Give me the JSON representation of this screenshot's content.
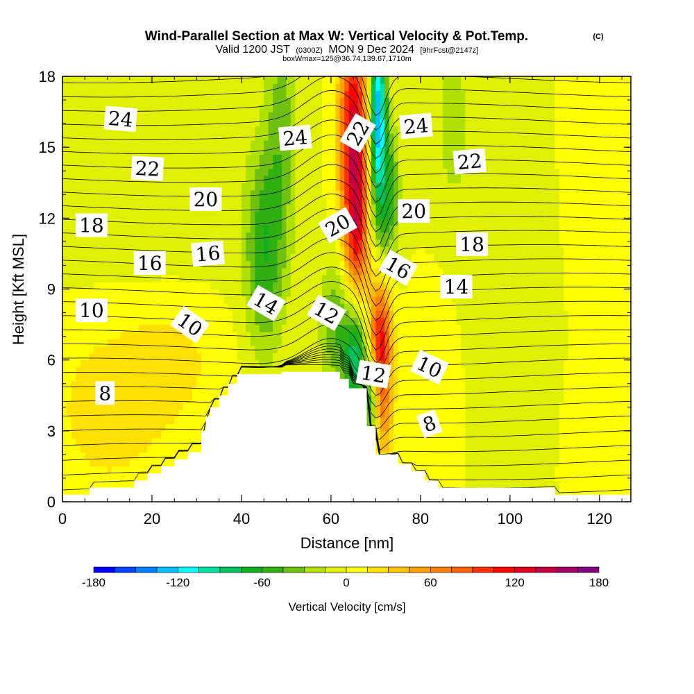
{
  "figure": {
    "title": "Wind-Parallel Section at Max W: Vertical Velocity & Pot.Temp.",
    "title_mark": "(C)",
    "subtitle": {
      "valid": "Valid 1200 JST",
      "utc": "(0300Z)",
      "date": "MON 9 Dec 2024",
      "fcst": "[9hrFcst@2147z]"
    },
    "subtitle2": "boxWmax=125@36.74,139.67,1710m"
  },
  "chart_data": {
    "type": "heatmap",
    "xlabel": "Distance [nm]",
    "ylabel": "Height [Kft MSL]",
    "xlim": [
      0,
      127
    ],
    "ylim": [
      0,
      18
    ],
    "xticks": [
      0,
      20,
      40,
      60,
      80,
      100,
      120
    ],
    "yticks": [
      0,
      3,
      6,
      9,
      12,
      15,
      18
    ],
    "colorbar": {
      "label": "Vertical Velocity [cm/s]",
      "tick_labels": [
        "-180",
        "-120",
        "-60",
        "0",
        "60",
        "120",
        "180"
      ],
      "tick_values": [
        -180,
        -120,
        -60,
        0,
        60,
        120,
        180
      ],
      "levels": [
        -180,
        -165,
        -150,
        -135,
        -120,
        -105,
        -90,
        -75,
        -60,
        -45,
        -30,
        -15,
        0,
        15,
        30,
        45,
        60,
        75,
        90,
        105,
        120,
        135,
        150,
        165,
        180
      ],
      "colors": [
        "#0000ff",
        "#0040ff",
        "#0080ff",
        "#00c0ff",
        "#00ffff",
        "#00e0a0",
        "#00c060",
        "#10b020",
        "#30b010",
        "#70c010",
        "#b0e000",
        "#e0f000",
        "#ffff00",
        "#ffe000",
        "#ffc000",
        "#ffa000",
        "#ff8000",
        "#ff6000",
        "#ff3000",
        "#ff0000",
        "#e00020",
        "#c00040",
        "#a00060",
        "#800080"
      ]
    },
    "terrain": [
      [
        0,
        0.3
      ],
      [
        6,
        0.3
      ],
      [
        6,
        0.6
      ],
      [
        16,
        0.6
      ],
      [
        16,
        0.9
      ],
      [
        19,
        0.9
      ],
      [
        19,
        1.2
      ],
      [
        22,
        1.2
      ],
      [
        22,
        1.5
      ],
      [
        25,
        1.5
      ],
      [
        25,
        1.8
      ],
      [
        28,
        1.8
      ],
      [
        28,
        2.1
      ],
      [
        31,
        2.1
      ],
      [
        31,
        3.0
      ],
      [
        32,
        3.0
      ],
      [
        32,
        3.6
      ],
      [
        33,
        3.6
      ],
      [
        33,
        4.0
      ],
      [
        35,
        4.0
      ],
      [
        35,
        4.5
      ],
      [
        37,
        4.5
      ],
      [
        37,
        5.0
      ],
      [
        39,
        5.0
      ],
      [
        39,
        5.4
      ],
      [
        49,
        5.4
      ],
      [
        49,
        5.5
      ],
      [
        62,
        5.5
      ],
      [
        62,
        5.2
      ],
      [
        64,
        5.2
      ],
      [
        64,
        4.8
      ],
      [
        68,
        4.8
      ],
      [
        68,
        3.2
      ],
      [
        70,
        3.2
      ],
      [
        70,
        2.0
      ],
      [
        75,
        2.0
      ],
      [
        75,
        1.6
      ],
      [
        78,
        1.6
      ],
      [
        78,
        1.3
      ],
      [
        81,
        1.3
      ],
      [
        81,
        0.9
      ],
      [
        84,
        0.9
      ],
      [
        84,
        0.6
      ],
      [
        110,
        0.6
      ],
      [
        110,
        0.3
      ],
      [
        127,
        0.3
      ]
    ],
    "w_features": [
      {
        "x": 65,
        "z": 15.5,
        "sx": 2.2,
        "sz": 4.0,
        "w": 125
      },
      {
        "x": 66,
        "z": 11.5,
        "sx": 1.6,
        "sz": 2.5,
        "w": 60
      },
      {
        "x": 71,
        "z": 6.8,
        "sx": 1.8,
        "sz": 1.8,
        "w": 110
      },
      {
        "x": 72,
        "z": 3.5,
        "sx": 1.5,
        "sz": 1.6,
        "w": 40
      },
      {
        "x": 70.5,
        "z": 16.5,
        "sx": 1.3,
        "sz": 3.0,
        "w": -130
      },
      {
        "x": 73,
        "z": 13.0,
        "sx": 1.6,
        "sz": 2.0,
        "w": -55
      },
      {
        "x": 65.5,
        "z": 6.2,
        "sx": 1.8,
        "sz": 1.8,
        "w": -90
      },
      {
        "x": 61,
        "z": 7.5,
        "sx": 2.5,
        "sz": 2.0,
        "w": -45
      },
      {
        "x": 69,
        "z": 4.5,
        "sx": 1.0,
        "sz": 1.5,
        "w": -60
      },
      {
        "x": 45,
        "z": 10.5,
        "sx": 3.0,
        "sz": 3.0,
        "w": -55
      },
      {
        "x": 49,
        "z": 16.0,
        "sx": 2.5,
        "sz": 4.0,
        "w": -35
      },
      {
        "x": 87,
        "z": 16.0,
        "sx": 4.0,
        "sz": 4.0,
        "w": -18
      },
      {
        "x": 15,
        "z": 14.0,
        "sx": 18.0,
        "sz": 4.0,
        "w": -12
      },
      {
        "x": 10,
        "z": 4.0,
        "sx": 10.0,
        "sz": 3.0,
        "w": 22
      },
      {
        "x": 25,
        "z": 6.0,
        "sx": 8.0,
        "sz": 2.0,
        "w": 18
      },
      {
        "x": 84,
        "z": 5.5,
        "sx": 3.0,
        "sz": 3.5,
        "w": 12
      },
      {
        "x": 117,
        "z": 2.0,
        "sx": 3.0,
        "sz": 2.0,
        "w": 8
      },
      {
        "x": 100,
        "z": 10.0,
        "sx": 6.0,
        "sz": 6.0,
        "w": -10
      },
      {
        "x": 120,
        "z": 15.0,
        "sx": 6.0,
        "sz": 5.0,
        "w": 6
      }
    ],
    "theta_labels": [
      {
        "text": "24",
        "x": 13,
        "z": 16.2,
        "rot": 5
      },
      {
        "text": "22",
        "x": 19,
        "z": 14.1,
        "rot": 3
      },
      {
        "text": "20",
        "x": 32,
        "z": 12.8,
        "rot": 0
      },
      {
        "text": "18",
        "x": 6.5,
        "z": 11.7,
        "rot": 0
      },
      {
        "text": "16",
        "x": 19.5,
        "z": 10.1,
        "rot": 0
      },
      {
        "text": "16",
        "x": 32.5,
        "z": 10.5,
        "rot": -5
      },
      {
        "text": "10",
        "x": 6.5,
        "z": 8.1,
        "rot": 0
      },
      {
        "text": "10",
        "x": 28.5,
        "z": 7.5,
        "rot": 35
      },
      {
        "text": "8",
        "x": 9.5,
        "z": 4.6,
        "rot": 0
      },
      {
        "text": "24",
        "x": 52,
        "z": 15.4,
        "rot": -5
      },
      {
        "text": "22",
        "x": 66,
        "z": 15.6,
        "rot": -60
      },
      {
        "text": "20",
        "x": 61.5,
        "z": 11.7,
        "rot": -30
      },
      {
        "text": "14",
        "x": 45.5,
        "z": 8.4,
        "rot": 30
      },
      {
        "text": "12",
        "x": 59,
        "z": 8.0,
        "rot": 30
      },
      {
        "text": "12",
        "x": 69.5,
        "z": 5.4,
        "rot": 10
      },
      {
        "text": "24",
        "x": 79,
        "z": 15.9,
        "rot": -5
      },
      {
        "text": "20",
        "x": 78.5,
        "z": 12.3,
        "rot": 0
      },
      {
        "text": "16",
        "x": 75,
        "z": 9.9,
        "rot": 30
      },
      {
        "text": "22",
        "x": 91,
        "z": 14.4,
        "rot": -5
      },
      {
        "text": "18",
        "x": 91.5,
        "z": 10.9,
        "rot": 0
      },
      {
        "text": "14",
        "x": 88,
        "z": 9.1,
        "rot": 0
      },
      {
        "text": "10",
        "x": 82,
        "z": 5.7,
        "rot": 25
      },
      {
        "text": "8",
        "x": 82,
        "z": 3.3,
        "rot": -20
      }
    ]
  }
}
